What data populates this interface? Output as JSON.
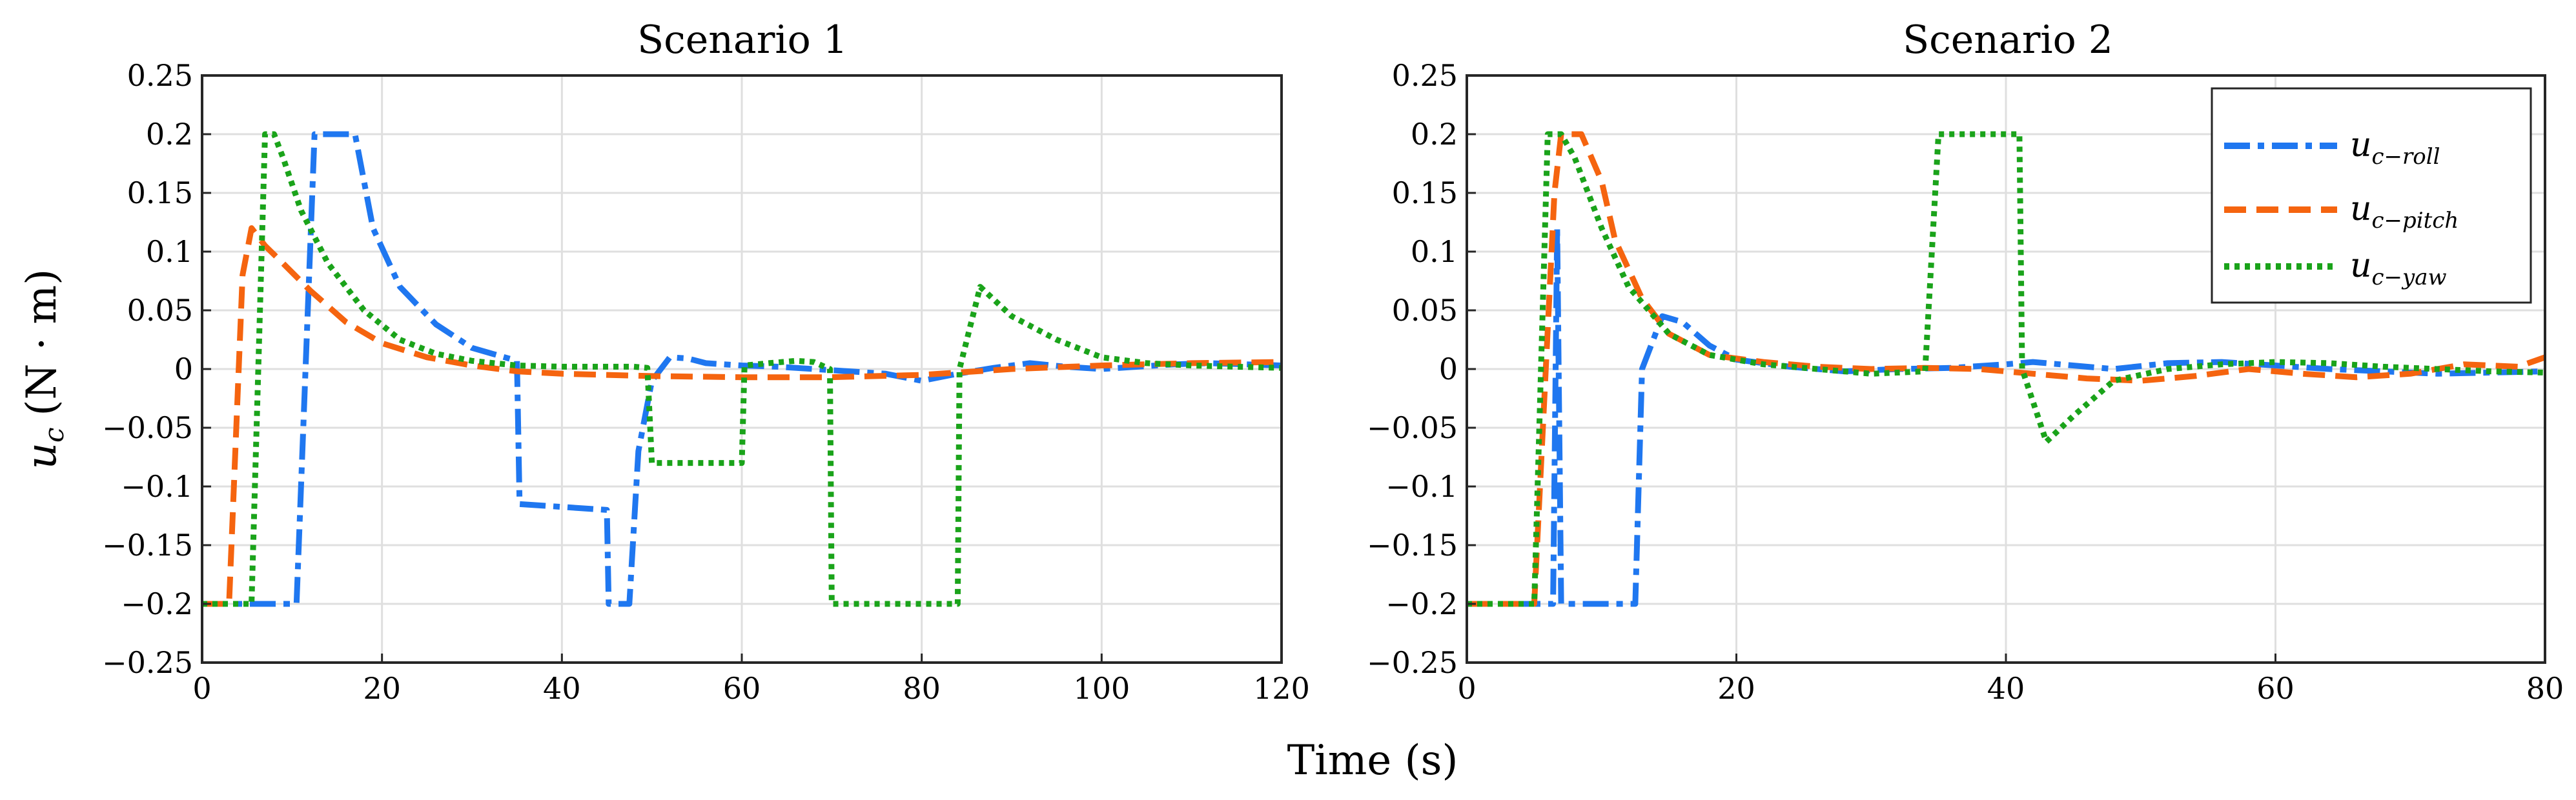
{
  "figure": {
    "shared_xlabel": "Time (s)",
    "ylabel": "u",
    "ylabel_sub": "c",
    "ylabel_unit": "(N · m)"
  },
  "legend": {
    "placement": "top-right of Scenario 2",
    "entries": [
      {
        "base": "u",
        "sub": "c−roll"
      },
      {
        "base": "u",
        "sub": "c−pitch"
      },
      {
        "base": "u",
        "sub": "c−yaw"
      }
    ]
  },
  "chart_data": [
    {
      "type": "line",
      "title": "Scenario 1",
      "xlabel": "",
      "ylabel": "u_c (N·m)",
      "xlim": [
        0,
        120
      ],
      "ylim": [
        -0.25,
        0.25
      ],
      "xticks": [
        0,
        20,
        40,
        60,
        80,
        100,
        120
      ],
      "xtick_labels": [
        "0",
        "20",
        "40",
        "60",
        "80",
        "100",
        "120"
      ],
      "yticks": [
        -0.25,
        -0.2,
        -0.15,
        -0.1,
        -0.05,
        0,
        0.05,
        0.1,
        0.15,
        0.2,
        0.25
      ],
      "ytick_labels": [
        "−0.25",
        "−0.2",
        "−0.15",
        "−0.1",
        "−0.05",
        "0",
        "0.05",
        "0.1",
        "0.15",
        "0.2",
        "0.25"
      ],
      "grid": true,
      "series": [
        {
          "name": "u_c-roll",
          "color": "#1f77f0",
          "dash": "roll",
          "x": [
            0,
            10.5,
            12.5,
            17,
            19,
            22,
            26,
            30,
            35,
            35.3,
            45,
            45.2,
            46.2,
            47.5,
            48.5,
            50,
            52,
            54,
            56,
            60,
            64,
            68,
            72,
            76,
            80,
            84,
            88,
            92,
            96,
            100,
            104,
            108,
            112,
            116,
            120
          ],
          "y": [
            -0.2,
            -0.2,
            0.2,
            0.2,
            0.12,
            0.07,
            0.038,
            0.018,
            0.007,
            -0.115,
            -0.12,
            -0.2,
            -0.2,
            -0.2,
            -0.07,
            -0.01,
            0.01,
            0.009,
            0.005,
            0.003,
            0.002,
            0.0,
            -0.002,
            -0.004,
            -0.01,
            -0.004,
            0.001,
            0.005,
            0.002,
            0.0,
            0.002,
            0.004,
            0.005,
            0.004,
            0.003
          ]
        },
        {
          "name": "u_c-pitch",
          "color": "#f5640f",
          "dash": "pitch",
          "x": [
            0,
            3,
            4.5,
            5.5,
            7,
            9,
            12,
            16,
            20,
            25,
            30,
            35,
            40,
            45,
            50,
            60,
            70,
            80,
            90,
            100,
            110,
            120
          ],
          "y": [
            -0.2,
            -0.2,
            0.08,
            0.12,
            0.105,
            0.09,
            0.067,
            0.04,
            0.022,
            0.01,
            0.003,
            -0.002,
            -0.004,
            -0.005,
            -0.006,
            -0.007,
            -0.007,
            -0.005,
            0.0,
            0.003,
            0.005,
            0.006
          ]
        },
        {
          "name": "u_c-yaw",
          "color": "#1aa31a",
          "dash": "yaw",
          "x": [
            0,
            5.5,
            7,
            8,
            9,
            11,
            14,
            18,
            22,
            26,
            30,
            35,
            40,
            45,
            48,
            49.5,
            50,
            60,
            60.3,
            63,
            66,
            68,
            69.8,
            70,
            84,
            84.2,
            86.5,
            90,
            95,
            100,
            105,
            110,
            115,
            120
          ],
          "y": [
            -0.2,
            -0.2,
            0.2,
            0.2,
            0.18,
            0.135,
            0.09,
            0.05,
            0.025,
            0.013,
            0.007,
            0.003,
            0.002,
            0.002,
            0.002,
            0.001,
            -0.08,
            -0.08,
            0.003,
            0.005,
            0.007,
            0.006,
            0.0,
            -0.2,
            -0.2,
            0.0,
            0.07,
            0.045,
            0.025,
            0.01,
            0.005,
            0.003,
            0.002,
            0.001
          ]
        }
      ]
    },
    {
      "type": "line",
      "title": "Scenario 2",
      "xlabel": "",
      "ylabel": "",
      "xlim": [
        0,
        80
      ],
      "ylim": [
        -0.25,
        0.25
      ],
      "xticks": [
        0,
        20,
        40,
        60,
        80
      ],
      "xtick_labels": [
        "0",
        "20",
        "40",
        "60",
        "80"
      ],
      "yticks": [
        -0.25,
        -0.2,
        -0.15,
        -0.1,
        -0.05,
        0,
        0.05,
        0.1,
        0.15,
        0.2,
        0.25
      ],
      "ytick_labels": [
        "−0.25",
        "−0.2",
        "−0.15",
        "−0.1",
        "−0.05",
        "0",
        "0.05",
        "0.1",
        "0.15",
        "0.2",
        "0.25"
      ],
      "grid": true,
      "series": [
        {
          "name": "u_c-roll",
          "color": "#1f77f0",
          "dash": "roll",
          "x": [
            0,
            6.4,
            6.7,
            7.0,
            12.5,
            13.0,
            14.5,
            16,
            18,
            20,
            24,
            28,
            32,
            36,
            40,
            42,
            44,
            48,
            52,
            56,
            60,
            64,
            68,
            72,
            76,
            80
          ],
          "y": [
            -0.2,
            -0.2,
            0.12,
            -0.2,
            -0.2,
            0.0,
            0.045,
            0.04,
            0.02,
            0.008,
            0.002,
            -0.002,
            0.0,
            0.001,
            0.004,
            0.006,
            0.004,
            0.0,
            0.005,
            0.006,
            0.003,
            0.0,
            -0.002,
            -0.004,
            -0.003,
            -0.002
          ]
        },
        {
          "name": "u_c-pitch",
          "color": "#f5640f",
          "dash": "pitch",
          "x": [
            0,
            5,
            6.5,
            7,
            8.5,
            10,
            11,
            13,
            15,
            18,
            22,
            26,
            30,
            34,
            38,
            42,
            46,
            50,
            54,
            58,
            62,
            66,
            70,
            74,
            78,
            80
          ],
          "y": [
            -0.2,
            -0.2,
            0.15,
            0.2,
            0.2,
            0.16,
            0.11,
            0.06,
            0.03,
            0.012,
            0.006,
            0.002,
            0.0,
            0.001,
            0.0,
            -0.004,
            -0.008,
            -0.01,
            -0.006,
            0.0,
            -0.004,
            -0.007,
            -0.004,
            0.004,
            0.002,
            0.01
          ]
        },
        {
          "name": "u_c-yaw",
          "color": "#1aa31a",
          "dash": "yaw",
          "x": [
            0,
            5,
            6,
            7,
            8,
            10,
            12,
            15,
            18,
            22,
            26,
            30,
            34,
            35,
            41,
            41.2,
            43,
            45,
            48,
            52,
            56,
            60,
            64,
            68,
            72,
            76,
            80
          ],
          "y": [
            -0.2,
            -0.2,
            0.2,
            0.2,
            0.18,
            0.12,
            0.07,
            0.03,
            0.012,
            0.004,
            0.0,
            -0.004,
            -0.002,
            0.2,
            0.2,
            0.0,
            -0.062,
            -0.04,
            -0.01,
            0.0,
            0.004,
            0.006,
            0.005,
            0.002,
            0.0,
            -0.002,
            -0.003
          ]
        }
      ]
    }
  ]
}
